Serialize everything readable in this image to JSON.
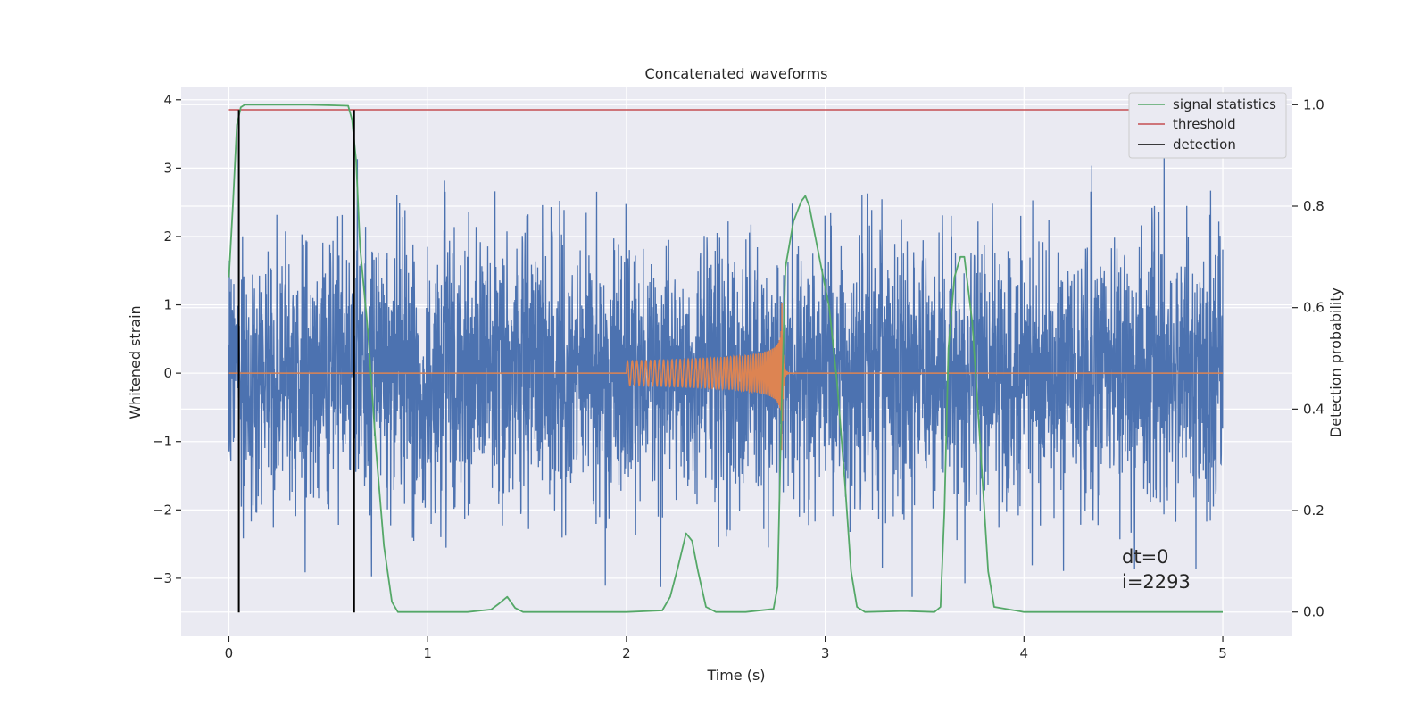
{
  "chart_data": {
    "type": "line",
    "title": "Concatenated waveforms",
    "xlabel": "Time (s)",
    "ylabel": "Whitened strain",
    "y2label": "Detection probability",
    "xlim": [
      -0.24,
      5.35
    ],
    "ylim": [
      -3.85,
      4.18
    ],
    "y2lim": [
      -0.048,
      1.034
    ],
    "x_ticks": [
      0,
      1,
      2,
      3,
      4,
      5
    ],
    "x_tick_labels": [
      "0",
      "1",
      "2",
      "3",
      "4",
      "5"
    ],
    "y_ticks": [
      -3,
      -2,
      -1,
      0,
      1,
      2,
      3,
      4
    ],
    "y_tick_labels": [
      "−3",
      "−2",
      "−1",
      "0",
      "1",
      "2",
      "3",
      "4"
    ],
    "y2_ticks": [
      0.0,
      0.2,
      0.4,
      0.6,
      0.8,
      1.0
    ],
    "y2_tick_labels": [
      "0.0",
      "0.2",
      "0.4",
      "0.6",
      "0.8",
      "1.0"
    ],
    "grid": true,
    "legend_position": "top-right",
    "colors": {
      "background": "#eaeaf2",
      "grid": "#ffffff",
      "strain": "#4c72b0",
      "template": "#dd8452",
      "statistics": "#55a868",
      "threshold": "#c44e52",
      "detection": "#000000"
    },
    "strain_series": {
      "x_range": [
        0,
        5
      ],
      "samples": 4000,
      "typical_amplitude": 1.3,
      "peak_max": 3.85,
      "peak_min": -3.5
    },
    "template_series": {
      "start": 2.0,
      "merger": 2.78,
      "ringdown_end": 2.86,
      "start_amplitude": 0.18,
      "peak_amplitude": 1.45
    },
    "series": [
      {
        "name": "signal statistics",
        "axis": "right",
        "x": [
          0.0,
          0.02,
          0.04,
          0.06,
          0.08,
          0.12,
          0.2,
          0.4,
          0.6,
          0.62,
          0.64,
          0.66,
          0.7,
          0.74,
          0.78,
          0.82,
          0.85,
          0.9,
          1.0,
          1.2,
          1.32,
          1.36,
          1.4,
          1.44,
          1.48,
          1.6,
          1.8,
          2.0,
          2.18,
          2.22,
          2.26,
          2.3,
          2.33,
          2.36,
          2.4,
          2.45,
          2.6,
          2.74,
          2.76,
          2.78,
          2.8,
          2.84,
          2.88,
          2.9,
          2.92,
          2.96,
          3.02,
          3.06,
          3.1,
          3.13,
          3.16,
          3.2,
          3.4,
          3.55,
          3.58,
          3.6,
          3.62,
          3.65,
          3.68,
          3.7,
          3.74,
          3.78,
          3.82,
          3.85,
          4.0,
          4.5,
          5.0
        ],
        "y": [
          0.66,
          0.8,
          0.96,
          0.995,
          1.0,
          1.0,
          1.0,
          1.0,
          0.998,
          0.97,
          0.89,
          0.72,
          0.55,
          0.32,
          0.13,
          0.02,
          0.0,
          0.0,
          0.0,
          0.0,
          0.005,
          0.017,
          0.03,
          0.008,
          0.0,
          0.0,
          0.0,
          0.0,
          0.003,
          0.03,
          0.09,
          0.155,
          0.14,
          0.08,
          0.01,
          0.0,
          0.0,
          0.006,
          0.05,
          0.4,
          0.68,
          0.77,
          0.81,
          0.82,
          0.8,
          0.72,
          0.6,
          0.45,
          0.25,
          0.08,
          0.01,
          0.0,
          0.002,
          0.0,
          0.01,
          0.2,
          0.52,
          0.66,
          0.7,
          0.7,
          0.57,
          0.33,
          0.08,
          0.01,
          0.0,
          0.0,
          0.0
        ]
      },
      {
        "name": "threshold",
        "axis": "right",
        "x": [
          0,
          5
        ],
        "y": [
          0.99,
          0.99
        ]
      },
      {
        "name": "detection",
        "axis": "left",
        "x_lines": [
          0.05,
          0.63
        ],
        "y_from": -3.5,
        "y_to": 3.85
      }
    ],
    "legend": [
      "signal statistics",
      "threshold",
      "detection"
    ],
    "annotations": [
      "dt=0",
      "i=2293"
    ]
  }
}
